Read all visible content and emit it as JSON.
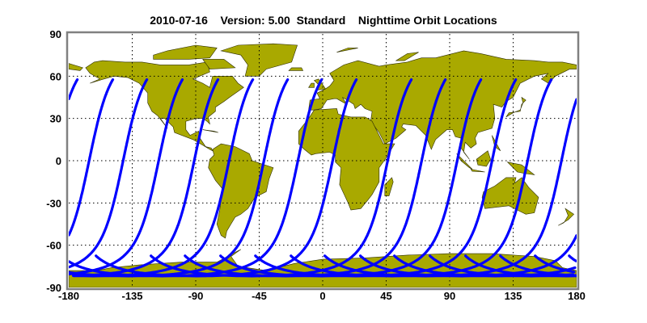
{
  "chart_data": {
    "type": "scatter",
    "title": "2010-07-16    Version: 5.00  Standard    Nighttime Orbit Locations",
    "xlabel": "",
    "ylabel": "",
    "xlim": [
      -180,
      180
    ],
    "ylim": [
      -90,
      90
    ],
    "x_ticks": [
      "-180",
      "-135",
      "-90",
      "-45",
      "0",
      "45",
      "90",
      "135",
      "180"
    ],
    "y_ticks": [
      "90",
      "60",
      "30",
      "0",
      "-30",
      "-60",
      "-90"
    ],
    "grid": true,
    "basemap": "world coastlines",
    "colors": {
      "land": "#a9a900",
      "track": "#0000ff",
      "frame": "#808080"
    },
    "orbit_tracks_northern_end_longitude": [
      -148.5,
      -124.4,
      -99.2,
      -74.0,
      -49.3,
      -24.6,
      -0.5,
      24.1,
      63.1,
      87.2,
      112.4,
      137.1,
      162.3,
      186.3
    ],
    "orbit_track_lat_range": [
      -82,
      58
    ]
  }
}
